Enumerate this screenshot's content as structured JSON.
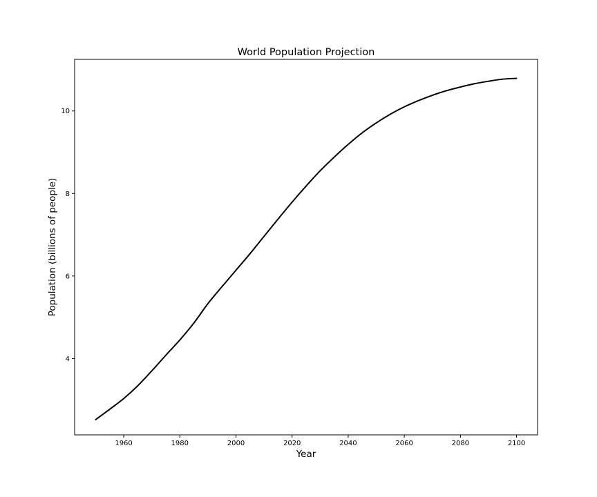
{
  "chart_data": {
    "type": "line",
    "title": "World Population Projection",
    "xlabel": "Year",
    "ylabel": "Population (billions of people)",
    "xlim": [
      1942.5,
      2107.5
    ],
    "ylim": [
      2.15,
      11.25
    ],
    "xticks": [
      1960,
      1980,
      2000,
      2020,
      2040,
      2060,
      2080,
      2100
    ],
    "yticks": [
      4,
      6,
      8,
      10
    ],
    "grid": false,
    "legend": "none",
    "line_color": "#000000",
    "series": [
      {
        "x": [
          1950,
          1955,
          1960,
          1965,
          1970,
          1975,
          1980,
          1985,
          1990,
          1995,
          2000,
          2005,
          2010,
          2015,
          2020,
          2025,
          2030,
          2035,
          2040,
          2045,
          2050,
          2055,
          2060,
          2065,
          2070,
          2075,
          2080,
          2085,
          2090,
          2095,
          2100
        ],
        "values": [
          2.52,
          2.77,
          3.03,
          3.34,
          3.7,
          4.08,
          4.45,
          4.86,
          5.33,
          5.74,
          6.14,
          6.54,
          6.96,
          7.38,
          7.79,
          8.18,
          8.55,
          8.88,
          9.19,
          9.47,
          9.71,
          9.92,
          10.1,
          10.25,
          10.38,
          10.49,
          10.58,
          10.66,
          10.72,
          10.77,
          10.79
        ]
      }
    ]
  }
}
